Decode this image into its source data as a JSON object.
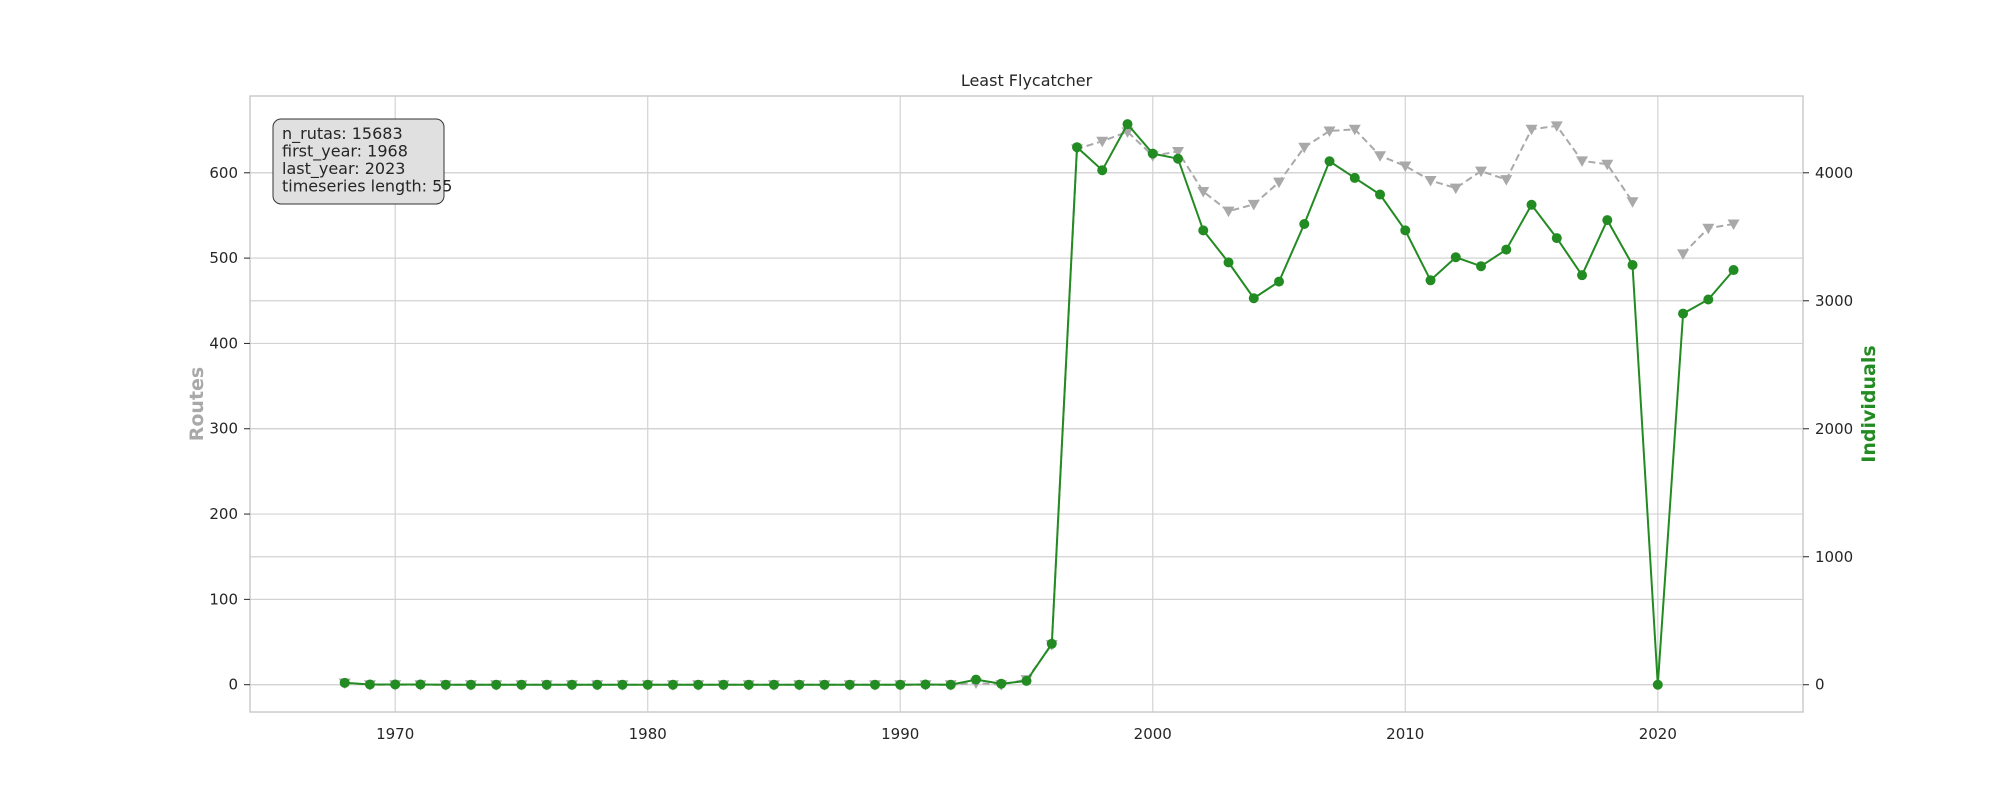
{
  "chart_data": {
    "type": "line",
    "title": "Least Flycatcher",
    "xlabel": "",
    "ylabel_left": "Routes",
    "ylabel_right": "Individuals",
    "xlim": [
      1964.25,
      2025.75
    ],
    "ylim_left": [
      -32,
      690
    ],
    "ylim_right": [
      -213,
      4600
    ],
    "x_ticks": [
      1970,
      1980,
      1990,
      2000,
      2010,
      2020
    ],
    "y_ticks_left": [
      0,
      100,
      200,
      300,
      400,
      500,
      600
    ],
    "y_ticks_right": [
      0,
      1000,
      2000,
      3000,
      4000
    ],
    "grid": true,
    "info_box": {
      "lines": [
        "n_rutas: 15683",
        "first_year: 1968",
        "last_year: 2023",
        "timeseries length: 55"
      ]
    },
    "series": [
      {
        "axis": "left",
        "color": "#a9a9a9",
        "style": "dashed",
        "marker": "triangle-down",
        "points": [
          [
            1968,
            2
          ],
          [
            1969,
            0
          ],
          [
            1970,
            0
          ],
          [
            1971,
            0
          ],
          [
            1972,
            0
          ],
          [
            1973,
            0
          ],
          [
            1974,
            0
          ],
          [
            1975,
            0
          ],
          [
            1976,
            0
          ],
          [
            1977,
            0
          ],
          [
            1978,
            0
          ],
          [
            1979,
            0
          ],
          [
            1980,
            0
          ],
          [
            1981,
            0
          ],
          [
            1982,
            0
          ],
          [
            1983,
            0
          ],
          [
            1984,
            0
          ],
          [
            1985,
            0
          ],
          [
            1986,
            0
          ],
          [
            1987,
            0
          ],
          [
            1988,
            0
          ],
          [
            1989,
            0
          ],
          [
            1990,
            0
          ],
          [
            1991,
            0
          ],
          [
            1992,
            0
          ],
          [
            1993,
            2
          ],
          [
            1994,
            0
          ],
          [
            1995,
            6
          ],
          [
            1996,
            47
          ],
          [
            1997,
            628
          ],
          [
            1998,
            637
          ],
          [
            1999,
            648
          ],
          [
            2000,
            620
          ],
          [
            2001,
            625
          ],
          [
            2002,
            578
          ],
          [
            2003,
            555
          ],
          [
            2004,
            563
          ],
          [
            2005,
            589
          ],
          [
            2006,
            630
          ],
          [
            2007,
            649
          ],
          [
            2008,
            651
          ],
          [
            2009,
            620
          ],
          [
            2010,
            608
          ],
          [
            2011,
            591
          ],
          [
            2012,
            582
          ],
          [
            2013,
            602
          ],
          [
            2014,
            592
          ],
          [
            2015,
            651
          ],
          [
            2016,
            655
          ],
          [
            2017,
            614
          ],
          [
            2018,
            610
          ],
          [
            2019,
            566
          ],
          [
            2021,
            505
          ],
          [
            2022,
            535
          ],
          [
            2023,
            540
          ]
        ]
      },
      {
        "axis": "right",
        "color": "#228b22",
        "style": "solid",
        "marker": "circle",
        "points": [
          [
            1968,
            15
          ],
          [
            1969,
            2
          ],
          [
            1970,
            2
          ],
          [
            1971,
            2
          ],
          [
            1972,
            0
          ],
          [
            1973,
            0
          ],
          [
            1974,
            0
          ],
          [
            1975,
            0
          ],
          [
            1976,
            0
          ],
          [
            1977,
            0
          ],
          [
            1978,
            0
          ],
          [
            1979,
            0
          ],
          [
            1980,
            0
          ],
          [
            1981,
            0
          ],
          [
            1982,
            0
          ],
          [
            1983,
            0
          ],
          [
            1984,
            0
          ],
          [
            1985,
            0
          ],
          [
            1986,
            0
          ],
          [
            1987,
            0
          ],
          [
            1988,
            0
          ],
          [
            1989,
            0
          ],
          [
            1990,
            0
          ],
          [
            1991,
            2
          ],
          [
            1992,
            0
          ],
          [
            1993,
            40
          ],
          [
            1994,
            8
          ],
          [
            1995,
            30
          ],
          [
            1996,
            320
          ],
          [
            1997,
            4200
          ],
          [
            1998,
            4020
          ],
          [
            1999,
            4380
          ],
          [
            2000,
            4150
          ],
          [
            2001,
            4110
          ],
          [
            2002,
            3550
          ],
          [
            2003,
            3300
          ],
          [
            2004,
            3020
          ],
          [
            2005,
            3150
          ],
          [
            2006,
            3600
          ],
          [
            2007,
            4090
          ],
          [
            2008,
            3960
          ],
          [
            2009,
            3830
          ],
          [
            2010,
            3550
          ],
          [
            2011,
            3160
          ],
          [
            2012,
            3340
          ],
          [
            2013,
            3270
          ],
          [
            2014,
            3400
          ],
          [
            2015,
            3750
          ],
          [
            2016,
            3490
          ],
          [
            2017,
            3200
          ],
          [
            2018,
            3630
          ],
          [
            2019,
            3280
          ],
          [
            2020,
            0
          ],
          [
            2021,
            2900
          ],
          [
            2022,
            3010
          ],
          [
            2023,
            3240
          ]
        ]
      }
    ]
  }
}
